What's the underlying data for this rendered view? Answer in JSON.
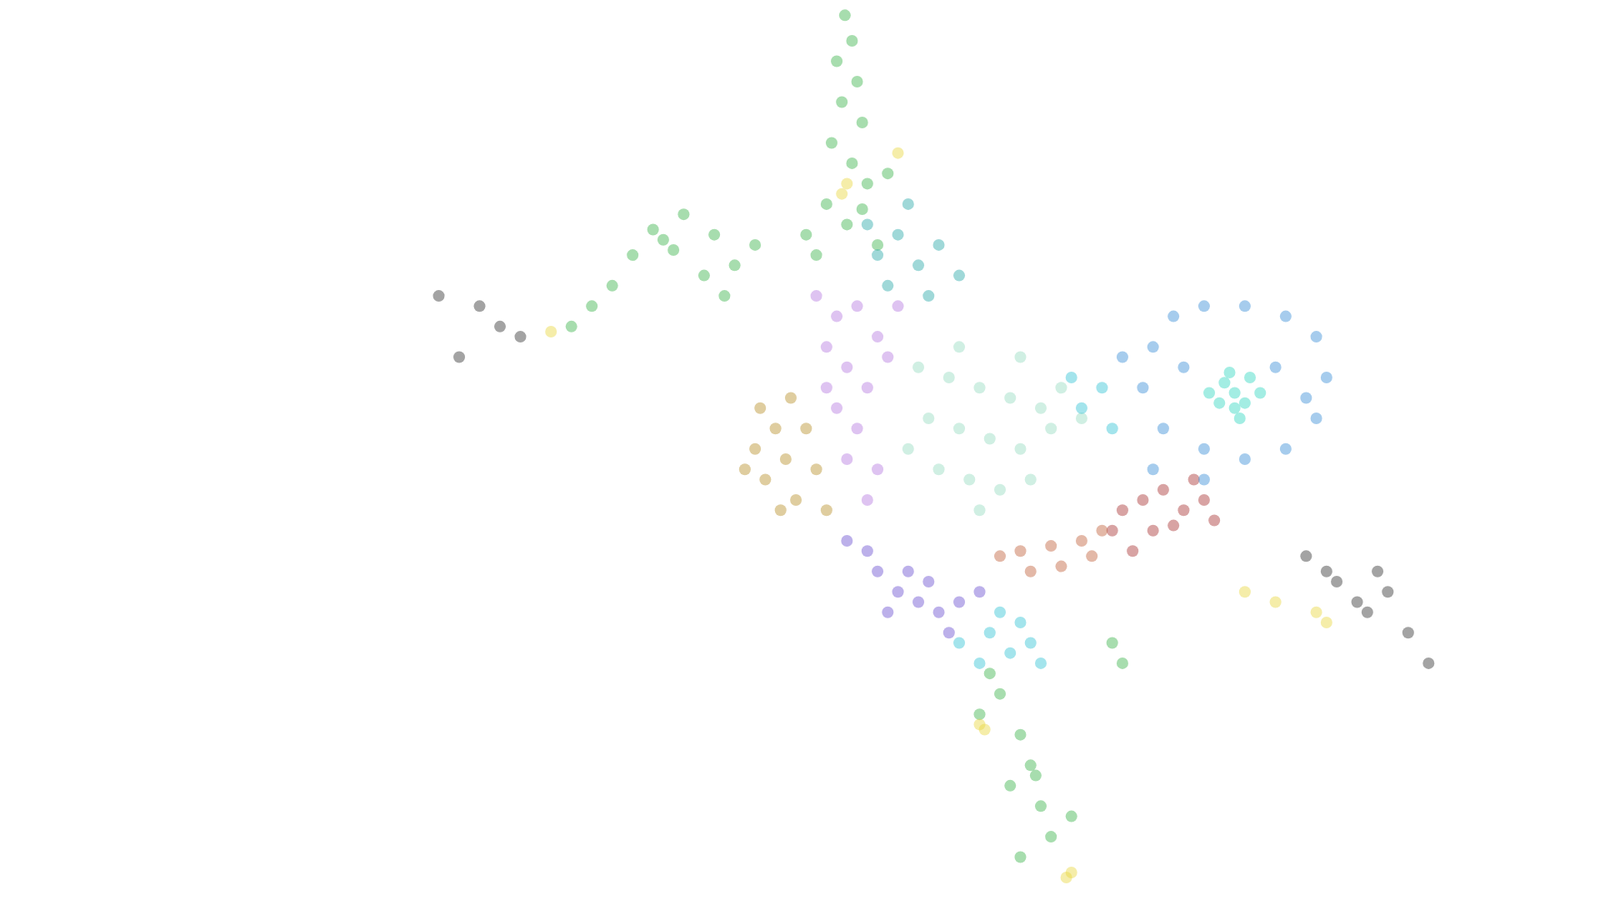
{
  "chart_data": {
    "type": "scatter",
    "tick_labels": false,
    "grid": false,
    "marker": "circle",
    "xlim": [
      0,
      1568
    ],
    "ylim": [
      882,
      0
    ],
    "series": [
      {
        "color": "#3cb44b",
        "x": [
          828,
          835,
          820,
          840,
          825,
          845,
          815,
          835,
          850,
          810,
          830,
          860,
          800,
          845,
          870,
          790,
          650,
          640,
          660,
          620,
          690,
          710,
          600,
          580,
          560,
          670,
          720,
          740,
          700,
          980,
          960,
          1000,
          1010,
          990,
          1020,
          1030,
          1015,
          970,
          1050,
          1000,
          1100,
          1090
        ],
        "y": [
          15,
          40,
          60,
          80,
          100,
          120,
          140,
          160,
          180,
          200,
          220,
          240,
          250,
          205,
          170,
          230,
          235,
          225,
          245,
          250,
          270,
          290,
          280,
          300,
          320,
          210,
          260,
          240,
          230,
          680,
          700,
          720,
          750,
          770,
          790,
          820,
          760,
          660,
          800,
          840,
          650,
          630
        ]
      },
      {
        "color": "#e8d840",
        "x": [
          830,
          825,
          965,
          960,
          1045,
          1050,
          1290,
          1300,
          1250,
          1220,
          540,
          880
        ],
        "y": [
          180,
          190,
          715,
          710,
          860,
          855,
          600,
          610,
          590,
          580,
          325,
          150
        ]
      },
      {
        "color": "#333333",
        "x": [
          490,
          470,
          510,
          450,
          430,
          1330,
          1310,
          1340,
          1360,
          1300,
          1380,
          1280,
          1350,
          1400
        ],
        "y": [
          320,
          300,
          330,
          350,
          290,
          590,
          570,
          600,
          580,
          560,
          620,
          545,
          560,
          650
        ]
      },
      {
        "color": "#2aa8a8",
        "x": [
          880,
          900,
          860,
          920,
          870,
          910,
          940,
          850,
          890
        ],
        "y": [
          230,
          260,
          250,
          240,
          280,
          290,
          270,
          220,
          200
        ]
      },
      {
        "color": "#b8902a",
        "x": [
          760,
          770,
          750,
          780,
          740,
          790,
          765,
          800,
          745,
          730,
          775,
          810
        ],
        "y": [
          420,
          450,
          470,
          490,
          440,
          420,
          500,
          460,
          400,
          460,
          390,
          500
        ]
      },
      {
        "color": "#b57ae0",
        "x": [
          820,
          840,
          860,
          810,
          830,
          850,
          870,
          820,
          840,
          830,
          860,
          850,
          800,
          880,
          810
        ],
        "y": [
          310,
          300,
          330,
          340,
          360,
          380,
          350,
          400,
          420,
          450,
          460,
          490,
          290,
          300,
          380
        ]
      },
      {
        "color": "#6a4fd0",
        "x": [
          860,
          880,
          900,
          920,
          940,
          890,
          850,
          910,
          960,
          870,
          930,
          830
        ],
        "y": [
          560,
          580,
          590,
          600,
          590,
          560,
          540,
          570,
          580,
          600,
          620,
          530
        ]
      },
      {
        "color": "#a83232",
        "x": [
          1100,
          1120,
          1140,
          1160,
          1180,
          1130,
          1150,
          1090,
          1170,
          1110,
          1190
        ],
        "y": [
          500,
          490,
          480,
          500,
          490,
          520,
          515,
          520,
          470,
          540,
          510
        ]
      },
      {
        "color": "#c0623c",
        "x": [
          1000,
          1030,
          1060,
          1040,
          1070,
          980,
          1010,
          1080
        ],
        "y": [
          540,
          535,
          530,
          555,
          545,
          545,
          560,
          520
        ]
      },
      {
        "color": "#96dcc0",
        "x": [
          900,
          930,
          960,
          990,
          1020,
          910,
          940,
          970,
          1000,
          1030,
          920,
          950,
          980,
          1010,
          890,
          1060,
          940,
          1000,
          1040,
          960
        ],
        "y": [
          360,
          370,
          380,
          390,
          400,
          410,
          420,
          430,
          440,
          420,
          460,
          470,
          480,
          470,
          440,
          410,
          340,
          350,
          380,
          500
        ]
      },
      {
        "color": "#3a8ed8",
        "x": [
          1130,
          1150,
          1180,
          1220,
          1260,
          1290,
          1300,
          1290,
          1260,
          1220,
          1180,
          1140,
          1120,
          1160,
          1250,
          1280,
          1100,
          1130,
          1180
        ],
        "y": [
          340,
          310,
          300,
          300,
          310,
          330,
          370,
          410,
          440,
          450,
          440,
          420,
          380,
          360,
          360,
          390,
          350,
          460,
          470
        ]
      },
      {
        "color": "#32d6c0",
        "x": [
          1210,
          1200,
          1220,
          1195,
          1225,
          1210,
          1185,
          1235,
          1205,
          1215
        ],
        "y": [
          385,
          375,
          395,
          395,
          370,
          400,
          385,
          385,
          365,
          410
        ]
      },
      {
        "color": "#33c4d4",
        "x": [
          970,
          990,
          1010,
          1000,
          960,
          1020,
          980,
          940,
          1060,
          1080,
          1090,
          1050
        ],
        "y": [
          620,
          640,
          630,
          610,
          650,
          650,
          600,
          630,
          400,
          380,
          420,
          370
        ]
      }
    ]
  }
}
